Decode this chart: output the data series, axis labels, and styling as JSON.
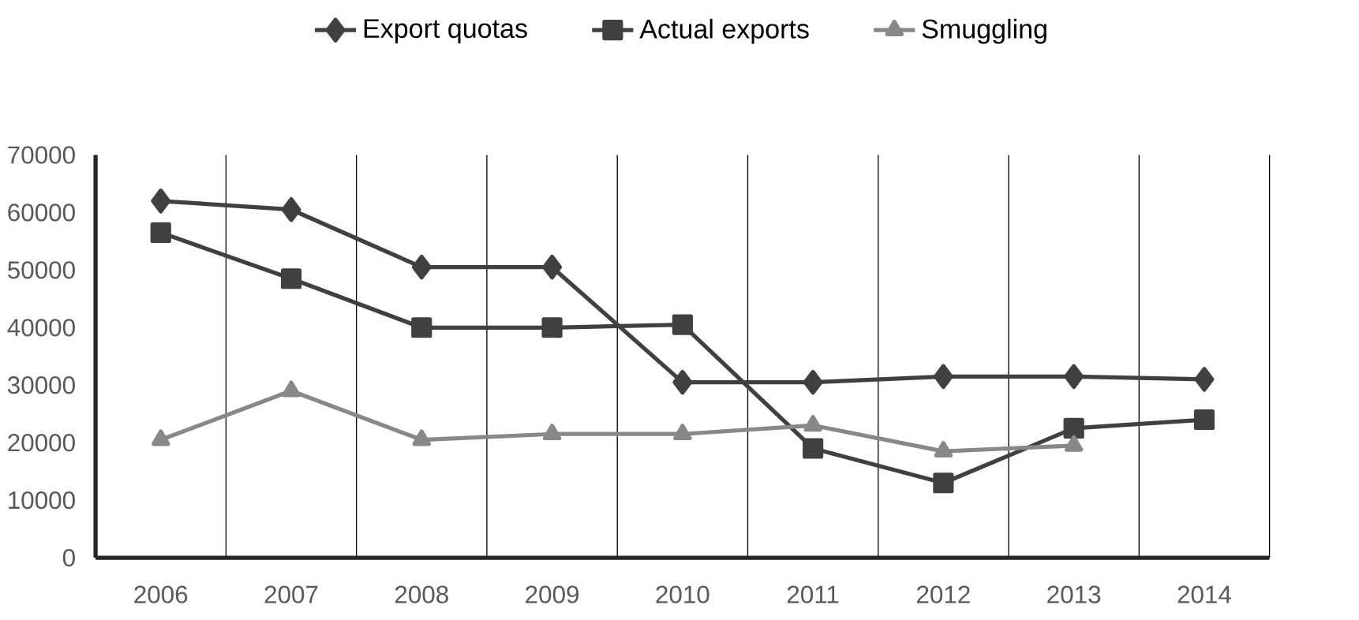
{
  "chart_data": {
    "type": "line",
    "categories": [
      "2006",
      "2007",
      "2008",
      "2009",
      "2010",
      "2011",
      "2012",
      "2013",
      "2014"
    ],
    "series": [
      {
        "name": "Export quotas",
        "color": "#404040",
        "marker": "diamond",
        "values": [
          62000,
          60500,
          50500,
          50500,
          30500,
          30500,
          31500,
          31500,
          31000
        ]
      },
      {
        "name": "Actual exports",
        "color": "#404040",
        "marker": "square",
        "values": [
          56500,
          48500,
          40000,
          40000,
          40500,
          19000,
          13000,
          22500,
          24000
        ]
      },
      {
        "name": "Smuggling",
        "color": "#888888",
        "marker": "triangle",
        "values": [
          20500,
          29000,
          20500,
          21500,
          21500,
          23000,
          18500,
          19500,
          null
        ]
      }
    ],
    "ylim": [
      0,
      70000
    ],
    "yticks": [
      0,
      10000,
      20000,
      30000,
      40000,
      50000,
      60000,
      70000
    ],
    "grid": "x",
    "legend": "top"
  }
}
